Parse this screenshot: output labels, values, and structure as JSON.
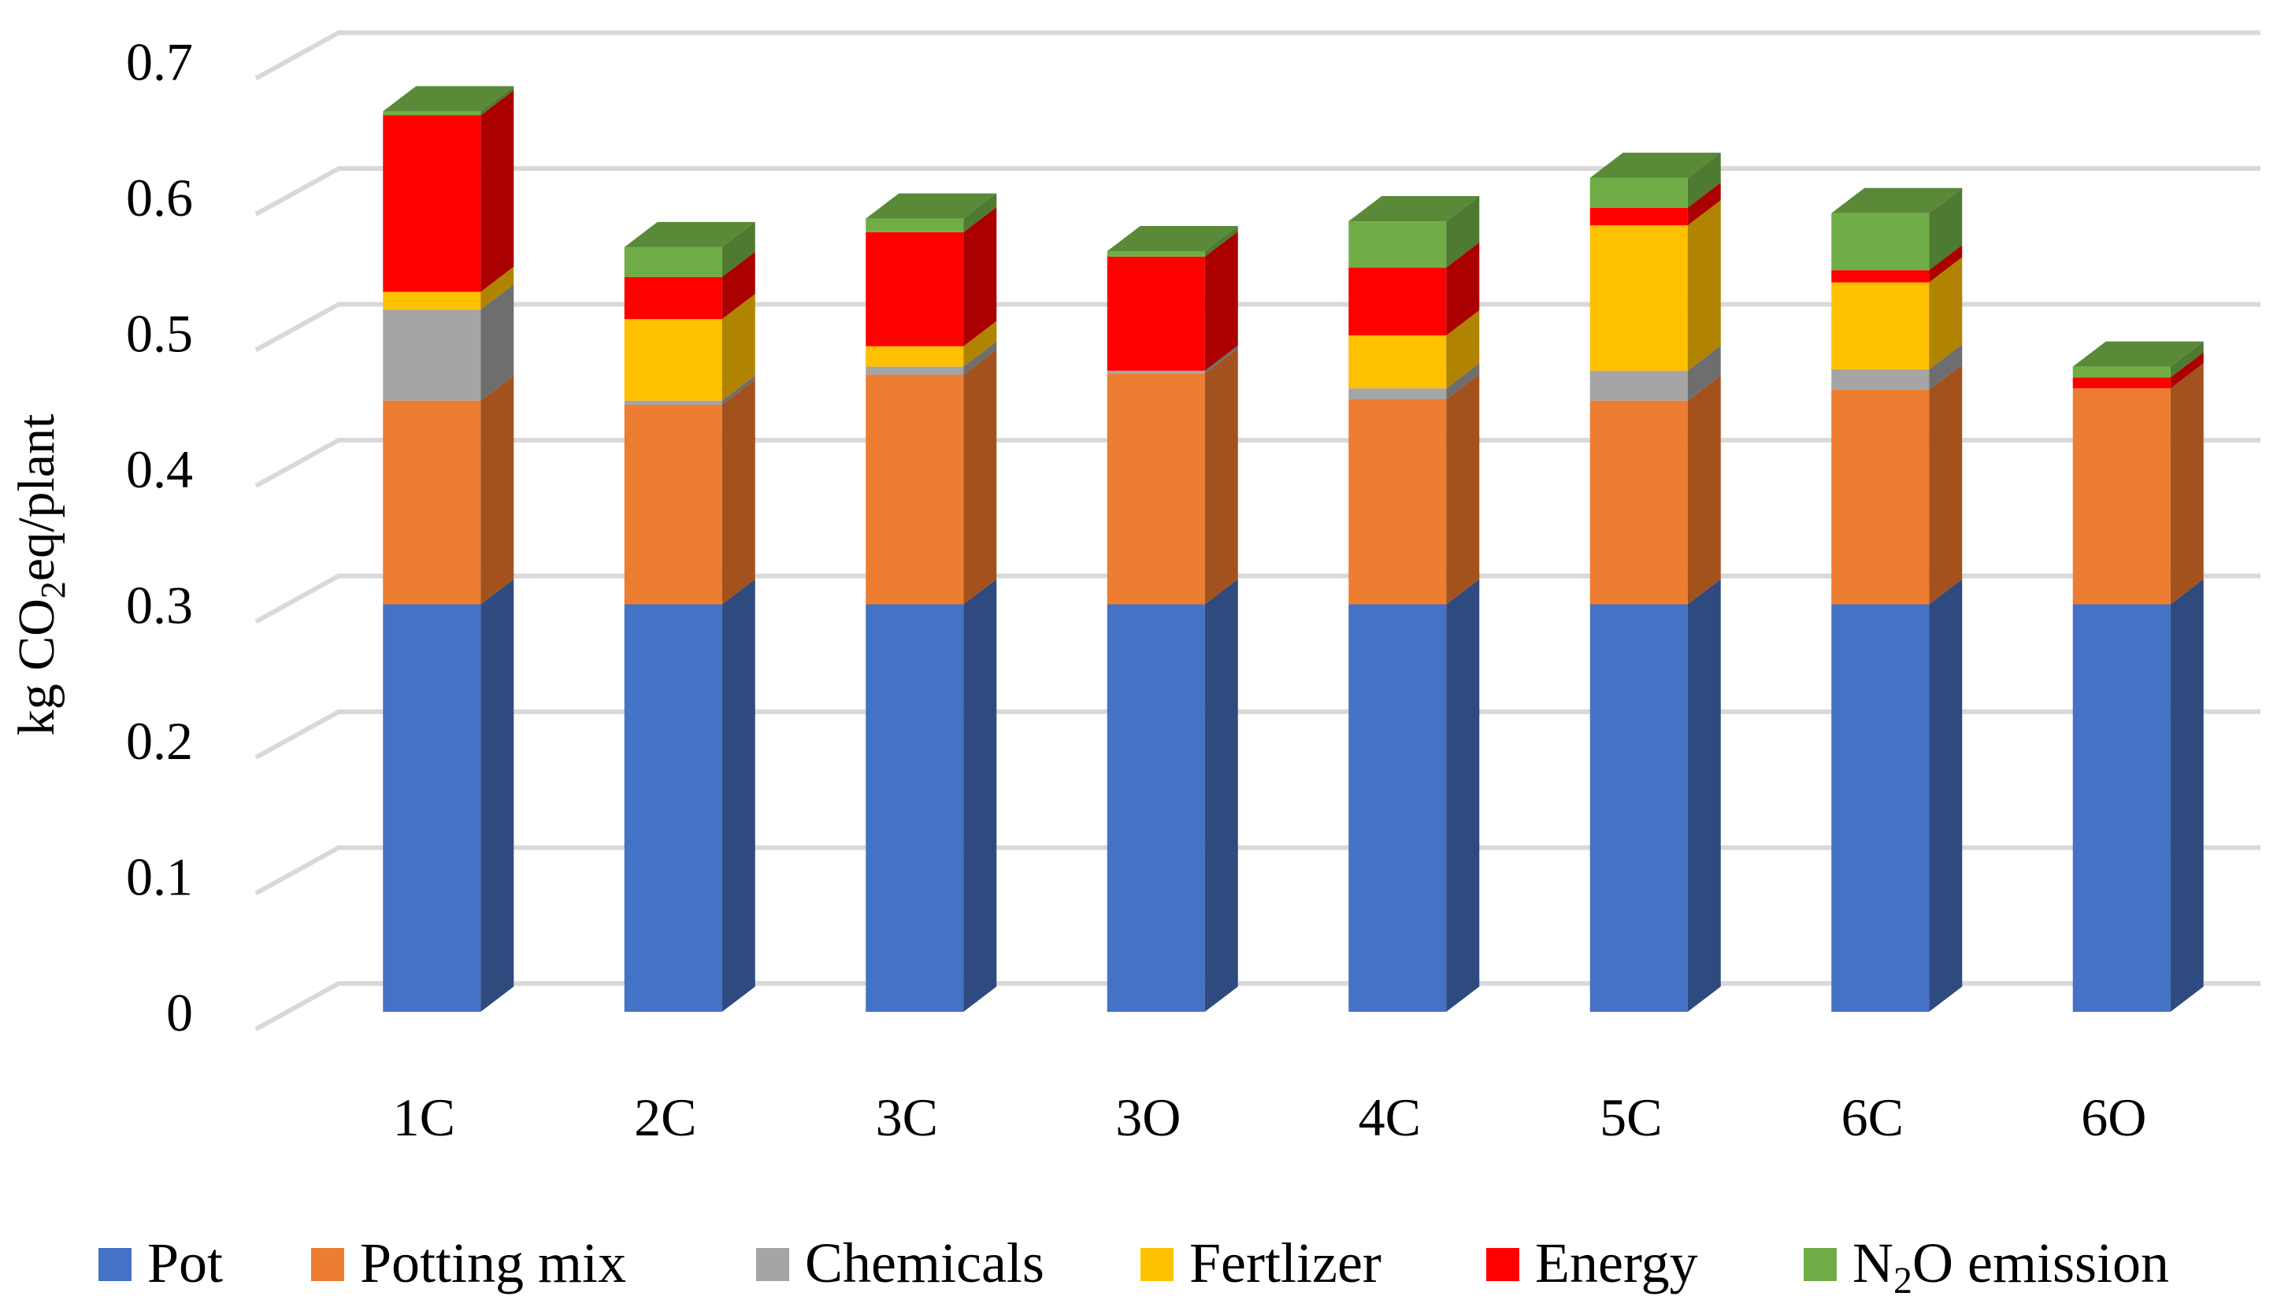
{
  "chart_data": {
    "type": "bar",
    "stacked": true,
    "style": "3d",
    "title": "",
    "xlabel": "",
    "ylabel": "kg CO2eq/plant",
    "ylabel_parts": [
      "kg CO",
      "2",
      "eq/plant"
    ],
    "ylim": [
      0,
      0.7
    ],
    "yticks": [
      0,
      0.1,
      0.2,
      0.3,
      0.4,
      0.5,
      0.6,
      0.7
    ],
    "ytick_labels": [
      "0",
      "0.1",
      "0.2",
      "0.3",
      "0.4",
      "0.5",
      "0.6",
      "0.7"
    ],
    "grid": true,
    "legend_position": "bottom",
    "categories": [
      "1C",
      "2C",
      "3C",
      "3O",
      "4C",
      "5C",
      "6C",
      "6O"
    ],
    "series": [
      {
        "name": "Pot",
        "label_parts": [
          "Pot"
        ],
        "color": "#4472C4",
        "side_color": "#2E4A7F",
        "top_color": "#5B87D6",
        "values": [
          0.3,
          0.3,
          0.3,
          0.3,
          0.3,
          0.3,
          0.3,
          0.3
        ]
      },
      {
        "name": "Potting mix",
        "label_parts": [
          "Potting mix"
        ],
        "color": "#ED7D31",
        "side_color": "#A3521E",
        "top_color": "#F29A5C",
        "values": [
          0.15,
          0.147,
          0.169,
          0.17,
          0.151,
          0.15,
          0.158,
          0.159
        ]
      },
      {
        "name": "Chemicals",
        "label_parts": [
          "Chemicals"
        ],
        "color": "#A5A5A5",
        "side_color": "#6E6E6E",
        "top_color": "#BDBDBD",
        "values": [
          0.067,
          0.003,
          0.006,
          0.002,
          0.008,
          0.022,
          0.015,
          0.0
        ]
      },
      {
        "name": "Fertlizer",
        "label_parts": [
          "Fertlizer"
        ],
        "color": "#FFC000",
        "side_color": "#B08400",
        "top_color": "#FFD24D",
        "values": [
          0.013,
          0.06,
          0.015,
          0.0,
          0.039,
          0.107,
          0.064,
          0.0
        ]
      },
      {
        "name": "Energy",
        "label_parts": [
          "Energy"
        ],
        "color": "#FF0000",
        "side_color": "#AA0000",
        "top_color": "#FF4D4D",
        "values": [
          0.13,
          0.031,
          0.084,
          0.084,
          0.05,
          0.013,
          0.009,
          0.008
        ]
      },
      {
        "name": "N2O emission",
        "label_parts": [
          "N",
          "2",
          "O emission"
        ],
        "color": "#70AD47",
        "side_color": "#4E7A32",
        "top_color": "#5A8A38",
        "values": [
          0.003,
          0.022,
          0.01,
          0.004,
          0.034,
          0.022,
          0.042,
          0.008
        ]
      }
    ]
  }
}
